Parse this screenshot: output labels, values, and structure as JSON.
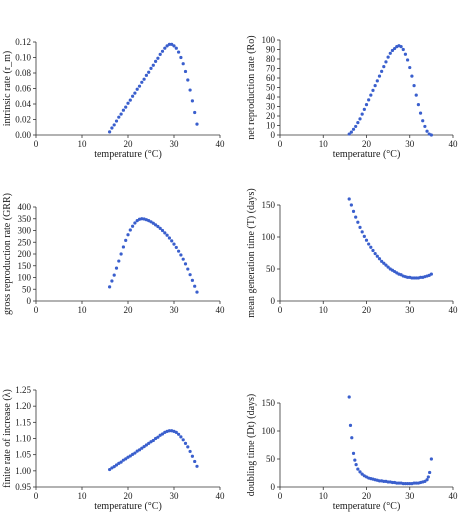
{
  "point_color": "#3a5fcd",
  "axis_color": "#333333",
  "chart_data": [
    {
      "type": "scatter",
      "xlabel": "temperature (°C)",
      "ylabel": "intrinsic rate (r_m)",
      "xlim": [
        0,
        40
      ],
      "ylim": [
        0,
        0.12
      ],
      "xticks": [
        0,
        10,
        20,
        30,
        40
      ],
      "yticks": [
        0,
        0.02,
        0.04,
        0.06,
        0.08,
        0.1,
        0.12
      ],
      "ytick_labels": [
        "0.00",
        "0.02",
        "0.04",
        "0.06",
        "0.08",
        "0.10",
        "0.12"
      ],
      "grid": false,
      "series": [
        {
          "x": [
            16.0,
            16.5,
            17.0,
            17.5,
            18.0,
            18.5,
            19.0,
            19.5,
            20.0,
            20.5,
            21.0,
            21.5,
            22.0,
            22.5,
            23.0,
            23.5,
            24.0,
            24.5,
            25.0,
            25.5,
            26.0,
            26.5,
            27.0,
            27.5,
            28.0,
            28.5,
            29.0,
            29.5,
            30.0,
            30.5,
            31.0,
            31.5,
            32.0,
            32.5,
            33.0,
            33.5,
            34.0,
            34.5,
            35.0
          ],
          "y": [
            0.004,
            0.009,
            0.013,
            0.018,
            0.023,
            0.027,
            0.032,
            0.036,
            0.041,
            0.045,
            0.05,
            0.054,
            0.059,
            0.063,
            0.068,
            0.072,
            0.077,
            0.081,
            0.086,
            0.09,
            0.095,
            0.099,
            0.104,
            0.108,
            0.112,
            0.115,
            0.117,
            0.117,
            0.115,
            0.112,
            0.107,
            0.1,
            0.092,
            0.082,
            0.071,
            0.058,
            0.044,
            0.029,
            0.014
          ]
        }
      ]
    },
    {
      "type": "scatter",
      "xlabel": "temperature (°C)",
      "ylabel": "net reproduction rate (Ro)",
      "xlim": [
        0,
        40
      ],
      "ylim": [
        0,
        100
      ],
      "xticks": [
        0,
        10,
        20,
        30,
        40
      ],
      "yticks": [
        0,
        10,
        20,
        30,
        40,
        50,
        60,
        70,
        80,
        90,
        100
      ],
      "ytick_labels": [
        "0",
        "10",
        "20",
        "30",
        "40",
        "50",
        "60",
        "70",
        "80",
        "90",
        "100"
      ],
      "grid": false,
      "series": [
        {
          "x": [
            16.0,
            16.5,
            17.0,
            17.5,
            18.0,
            18.5,
            19.0,
            19.5,
            20.0,
            20.5,
            21.0,
            21.5,
            22.0,
            22.5,
            23.0,
            23.5,
            24.0,
            24.5,
            25.0,
            25.5,
            26.0,
            26.5,
            27.0,
            27.5,
            28.0,
            28.5,
            29.0,
            29.5,
            30.0,
            30.5,
            31.0,
            31.5,
            32.0,
            32.5,
            33.0,
            33.5,
            34.0,
            34.5,
            35.0
          ],
          "y": [
            1,
            3,
            6,
            9,
            13,
            17,
            22,
            27,
            32,
            37,
            42,
            47,
            52,
            57,
            62,
            67,
            72,
            77,
            82,
            86,
            89,
            91,
            93,
            94,
            93,
            90,
            85,
            79,
            71,
            62,
            52,
            42,
            32,
            23,
            15,
            9,
            4,
            1,
            0
          ]
        }
      ]
    },
    {
      "type": "scatter",
      "xlabel": "",
      "ylabel": "gross reproduction rate (GRR)",
      "xlim": [
        0,
        40
      ],
      "ylim": [
        0,
        400
      ],
      "xticks": [
        0,
        10,
        20,
        30,
        40
      ],
      "yticks": [
        0,
        50,
        100,
        150,
        200,
        250,
        300,
        350,
        400
      ],
      "ytick_labels": [
        "0",
        "50",
        "100",
        "150",
        "200",
        "250",
        "300",
        "350",
        "400"
      ],
      "grid": false,
      "series": [
        {
          "x": [
            16.0,
            16.5,
            17.0,
            17.5,
            18.0,
            18.5,
            19.0,
            19.5,
            20.0,
            20.5,
            21.0,
            21.5,
            22.0,
            22.5,
            23.0,
            23.5,
            24.0,
            24.5,
            25.0,
            25.5,
            26.0,
            26.5,
            27.0,
            27.5,
            28.0,
            28.5,
            29.0,
            29.5,
            30.0,
            30.5,
            31.0,
            31.5,
            32.0,
            32.5,
            33.0,
            33.5,
            34.0,
            34.5,
            35.0
          ],
          "y": [
            60,
            85,
            110,
            140,
            170,
            200,
            230,
            258,
            282,
            302,
            318,
            332,
            342,
            348,
            350,
            349,
            346,
            342,
            337,
            331,
            324,
            317,
            309,
            300,
            290,
            280,
            268,
            256,
            242,
            228,
            212,
            196,
            178,
            158,
            136,
            112,
            88,
            63,
            38
          ]
        }
      ]
    },
    {
      "type": "scatter",
      "xlabel": "",
      "ylabel": "mean generation time (T) (days)",
      "xlim": [
        0,
        40
      ],
      "ylim": [
        0,
        150
      ],
      "xticks": [
        0,
        10,
        20,
        30,
        40
      ],
      "yticks": [
        0,
        50,
        100,
        150
      ],
      "ytick_labels": [
        "0",
        "50",
        "100",
        "150"
      ],
      "grid": false,
      "series": [
        {
          "x": [
            16.0,
            16.5,
            17.0,
            17.5,
            18.0,
            18.5,
            19.0,
            19.5,
            20.0,
            20.5,
            21.0,
            21.5,
            22.0,
            22.5,
            23.0,
            23.5,
            24.0,
            24.5,
            25.0,
            25.5,
            26.0,
            26.5,
            27.0,
            27.5,
            28.0,
            28.5,
            29.0,
            29.5,
            30.0,
            30.5,
            31.0,
            31.5,
            32.0,
            32.5,
            33.0,
            33.5,
            34.0,
            34.5,
            35.0
          ],
          "y": [
            160,
            150,
            140,
            131,
            123,
            115,
            108,
            101,
            95,
            89,
            84,
            79,
            74,
            70,
            66,
            62,
            59,
            56,
            53,
            50,
            48,
            46,
            44,
            42,
            41,
            39,
            38,
            37,
            37,
            36,
            36,
            36,
            36,
            37,
            37,
            38,
            39,
            40,
            42
          ]
        }
      ]
    },
    {
      "type": "scatter",
      "xlabel": "temperature (°C)",
      "ylabel": "finite rate of increase (λ)",
      "xlim": [
        0,
        40
      ],
      "ylim": [
        0.95,
        1.25
      ],
      "xticks": [
        0,
        10,
        20,
        30,
        40
      ],
      "yticks": [
        0.95,
        1.0,
        1.05,
        1.1,
        1.15,
        1.2,
        1.25
      ],
      "ytick_labels": [
        "0.95",
        "1.00",
        "1.05",
        "1.10",
        "1.15",
        "1.20",
        "1.25"
      ],
      "grid": false,
      "series": [
        {
          "x": [
            16.0,
            16.5,
            17.0,
            17.5,
            18.0,
            18.5,
            19.0,
            19.5,
            20.0,
            20.5,
            21.0,
            21.5,
            22.0,
            22.5,
            23.0,
            23.5,
            24.0,
            24.5,
            25.0,
            25.5,
            26.0,
            26.5,
            27.0,
            27.5,
            28.0,
            28.5,
            29.0,
            29.5,
            30.0,
            30.5,
            31.0,
            31.5,
            32.0,
            32.5,
            33.0,
            33.5,
            34.0,
            34.5,
            35.0
          ],
          "y": [
            1.004,
            1.009,
            1.013,
            1.018,
            1.023,
            1.027,
            1.033,
            1.037,
            1.042,
            1.046,
            1.051,
            1.055,
            1.061,
            1.065,
            1.07,
            1.075,
            1.08,
            1.085,
            1.09,
            1.094,
            1.1,
            1.104,
            1.11,
            1.114,
            1.119,
            1.122,
            1.124,
            1.124,
            1.122,
            1.119,
            1.113,
            1.105,
            1.096,
            1.085,
            1.074,
            1.06,
            1.045,
            1.029,
            1.014
          ]
        }
      ]
    },
    {
      "type": "scatter",
      "xlabel": "temperature (°C)",
      "ylabel": "doubling time (Dt) (days)",
      "xlim": [
        0,
        40
      ],
      "ylim": [
        0,
        150
      ],
      "xticks": [
        0,
        10,
        20,
        30,
        40
      ],
      "yticks": [
        0,
        50,
        100,
        150
      ],
      "ytick_labels": [
        "0",
        "50",
        "100",
        "150"
      ],
      "grid": false,
      "series": [
        {
          "x": [
            16.0,
            16.3,
            16.6,
            17.0,
            17.3,
            17.6,
            18.0,
            18.5,
            19.0,
            19.5,
            20.0,
            20.5,
            21.0,
            21.5,
            22.0,
            22.5,
            23.0,
            23.5,
            24.0,
            24.5,
            25.0,
            25.5,
            26.0,
            26.5,
            27.0,
            27.5,
            28.0,
            28.5,
            29.0,
            29.5,
            30.0,
            30.5,
            31.0,
            31.5,
            32.0,
            32.5,
            33.0,
            33.5,
            34.0,
            34.3,
            34.6,
            35.0
          ],
          "y": [
            168,
            110,
            88,
            60,
            48,
            40,
            32,
            27,
            23,
            20,
            18,
            16,
            15,
            14,
            13,
            12,
            11,
            11,
            10,
            10,
            9,
            9,
            8,
            8,
            7,
            7,
            7,
            6,
            6,
            6,
            6,
            6,
            7,
            7,
            7,
            8,
            9,
            10,
            13,
            18,
            26,
            50
          ]
        }
      ]
    }
  ]
}
